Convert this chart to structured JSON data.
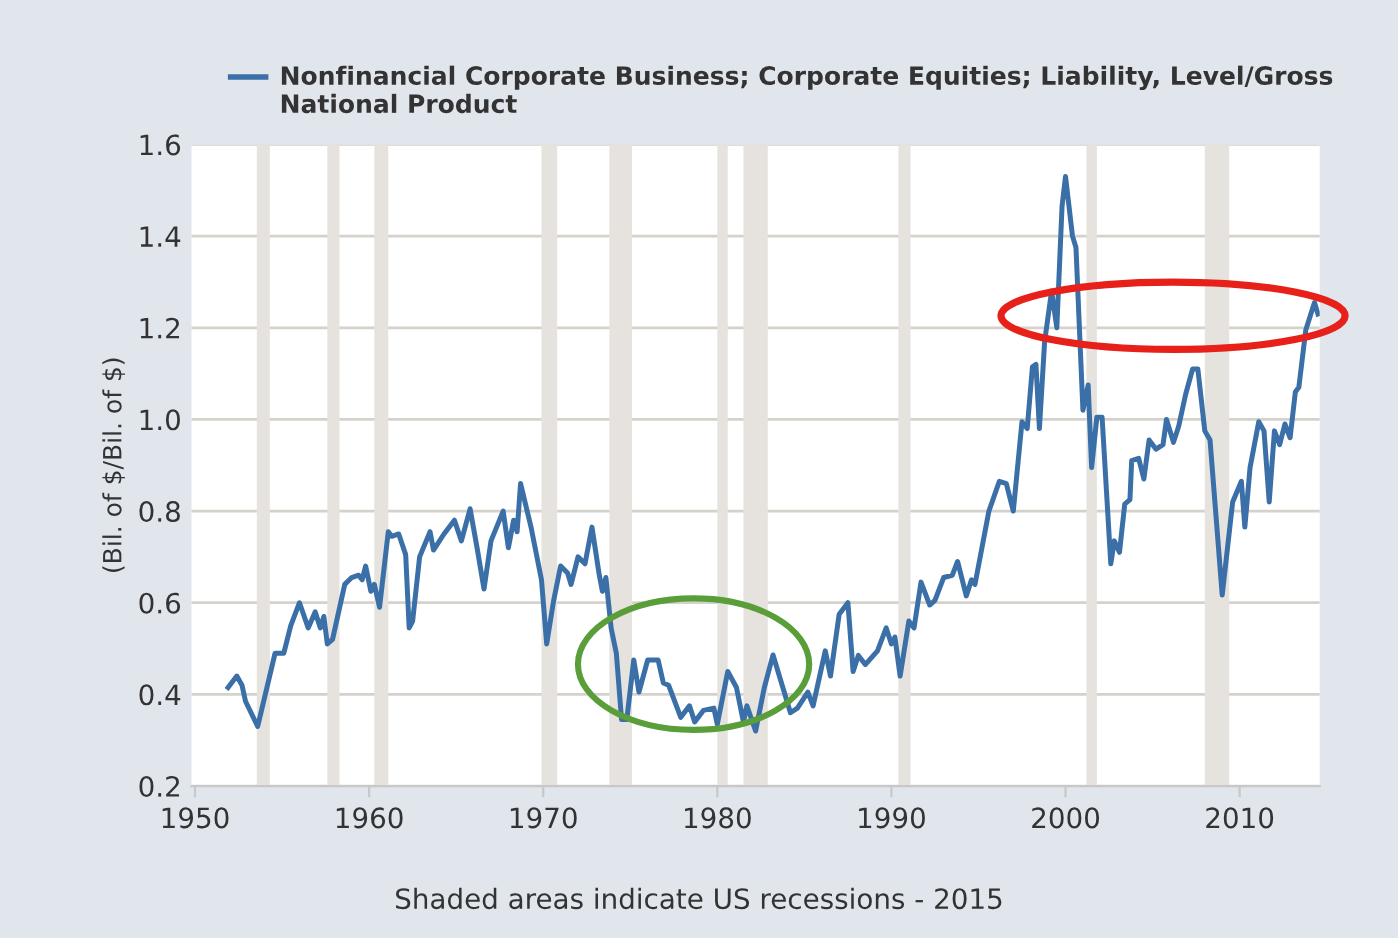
{
  "chart_data": {
    "type": "line",
    "ylabel": "(Bil. of $/Bil. of $)",
    "annotations": [
      "Shaded areas indicate US recessions - 2015"
    ],
    "xlim": [
      1949.8,
      2014.6
    ],
    "xticks": [
      1950,
      1960,
      1970,
      1980,
      1990,
      2000,
      2010
    ],
    "ylim": [
      0.2,
      1.6
    ],
    "yticks": [
      0.2,
      0.4,
      0.6,
      0.8,
      {
        "value": 1.0,
        "label": "1.0"
      },
      1.2,
      1.4,
      1.6
    ],
    "grid": "y",
    "legend": "top",
    "marker": "none",
    "line_style": "solid",
    "bands": [
      {
        "axis": "x",
        "from": 1953.55,
        "to": 1954.3,
        "color": "#e6e3df"
      },
      {
        "axis": "x",
        "from": 1957.6,
        "to": 1958.3,
        "color": "#e6e3df"
      },
      {
        "axis": "x",
        "from": 1960.3,
        "to": 1961.1,
        "color": "#e6e3df"
      },
      {
        "axis": "x",
        "from": 1969.9,
        "to": 1970.8,
        "color": "#e6e3df"
      },
      {
        "axis": "x",
        "from": 1973.8,
        "to": 1975.1,
        "color": "#e6e3df"
      },
      {
        "axis": "x",
        "from": 1980.0,
        "to": 1980.6,
        "color": "#e6e3df"
      },
      {
        "axis": "x",
        "from": 1981.5,
        "to": 1982.9,
        "color": "#e6e3df"
      },
      {
        "axis": "x",
        "from": 1990.4,
        "to": 1991.1,
        "color": "#e6e3df"
      },
      {
        "axis": "x",
        "from": 2001.2,
        "to": 2001.8,
        "color": "#e6e3df"
      },
      {
        "axis": "x",
        "from": 2008.0,
        "to": 2009.4,
        "color": "#e6e3df"
      }
    ],
    "series": [
      {
        "name": "Nonfinancial Corporate Business; Corporate Equities; Liability, Level/Gross National Product",
        "color": "#3a6fa8",
        "x": [
          1951.9,
          1952.4,
          1952.7,
          1952.9,
          1953.6,
          1954.6,
          1955.1,
          1955.5,
          1956.0,
          1956.5,
          1956.9,
          1957.2,
          1957.4,
          1957.6,
          1957.9,
          1958.6,
          1959.0,
          1959.4,
          1959.6,
          1959.8,
          1960.1,
          1960.3,
          1960.6,
          1961.1,
          1961.3,
          1961.7,
          1962.1,
          1962.3,
          1962.5,
          1962.9,
          1963.5,
          1963.7,
          1964.3,
          1964.9,
          1965.3,
          1965.8,
          1966.2,
          1966.6,
          1967.0,
          1967.7,
          1968.0,
          1968.3,
          1968.5,
          1968.7,
          1969.3,
          1969.9,
          1970.2,
          1970.6,
          1971.0,
          1971.4,
          1971.6,
          1972.0,
          1972.4,
          1972.8,
          1973.2,
          1973.4,
          1973.6,
          1973.9,
          1974.2,
          1974.5,
          1974.8,
          1975.2,
          1975.5,
          1976.0,
          1976.6,
          1976.9,
          1977.2,
          1977.9,
          1978.4,
          1978.7,
          1979.2,
          1979.8,
          1980.0,
          1980.6,
          1981.1,
          1981.5,
          1981.7,
          1982.2,
          1982.7,
          1983.2,
          1984.2,
          1984.6,
          1985.2,
          1985.5,
          1986.2,
          1986.5,
          1987.0,
          1987.5,
          1987.8,
          1988.1,
          1988.5,
          1989.2,
          1989.7,
          1990.0,
          1990.2,
          1990.5,
          1991.0,
          1991.3,
          1991.7,
          1992.2,
          1992.5,
          1993.0,
          1993.5,
          1993.8,
          1994.3,
          1994.6,
          1994.8,
          1995.6,
          1996.2,
          1996.6,
          1997.0,
          1997.5,
          1997.8,
          1998.1,
          1998.3,
          1998.5,
          1998.8,
          1999.2,
          1999.5,
          1999.8,
          2000.0,
          2000.4,
          2000.6,
          2001.0,
          2001.3,
          2001.5,
          2001.8,
          2002.1,
          2002.6,
          2002.8,
          2003.1,
          2003.4,
          2003.7,
          2003.8,
          2004.2,
          2004.5,
          2004.8,
          2005.2,
          2005.6,
          2005.8,
          2006.2,
          2006.5,
          2006.9,
          2007.3,
          2007.6,
          2008.0,
          2008.3,
          2009.0,
          2009.6,
          2010.1,
          2010.3,
          2010.6,
          2011.1,
          2011.4,
          2011.7,
          2012.0,
          2012.3,
          2012.6,
          2012.9,
          2013.2,
          2013.4,
          2013.8,
          2014.3,
          2014.5
        ],
        "values": [
          0.415,
          0.44,
          0.42,
          0.385,
          0.33,
          0.49,
          0.49,
          0.55,
          0.6,
          0.545,
          0.58,
          0.545,
          0.57,
          0.51,
          0.52,
          0.64,
          0.655,
          0.66,
          0.65,
          0.68,
          0.625,
          0.64,
          0.59,
          0.755,
          0.745,
          0.75,
          0.705,
          0.545,
          0.56,
          0.7,
          0.755,
          0.715,
          0.75,
          0.78,
          0.735,
          0.805,
          0.72,
          0.63,
          0.735,
          0.8,
          0.72,
          0.78,
          0.755,
          0.86,
          0.765,
          0.65,
          0.51,
          0.605,
          0.68,
          0.665,
          0.64,
          0.7,
          0.685,
          0.765,
          0.665,
          0.625,
          0.655,
          0.545,
          0.49,
          0.345,
          0.345,
          0.475,
          0.405,
          0.475,
          0.475,
          0.425,
          0.42,
          0.35,
          0.375,
          0.34,
          0.365,
          0.37,
          0.335,
          0.45,
          0.415,
          0.34,
          0.375,
          0.32,
          0.415,
          0.486,
          0.36,
          0.37,
          0.405,
          0.375,
          0.495,
          0.44,
          0.575,
          0.6,
          0.45,
          0.485,
          0.465,
          0.495,
          0.545,
          0.51,
          0.525,
          0.44,
          0.56,
          0.545,
          0.645,
          0.595,
          0.605,
          0.655,
          0.66,
          0.69,
          0.615,
          0.65,
          0.64,
          0.8,
          0.865,
          0.86,
          0.8,
          0.995,
          0.98,
          1.115,
          1.12,
          0.98,
          1.17,
          1.28,
          1.2,
          1.465,
          1.53,
          1.4,
          1.375,
          1.02,
          1.075,
          0.895,
          1.005,
          1.005,
          0.685,
          0.735,
          0.71,
          0.815,
          0.825,
          0.91,
          0.915,
          0.87,
          0.955,
          0.935,
          0.945,
          1.0,
          0.95,
          0.985,
          1.055,
          1.11,
          1.11,
          0.975,
          0.955,
          0.617,
          0.82,
          0.865,
          0.765,
          0.895,
          0.995,
          0.975,
          0.82,
          0.975,
          0.945,
          0.99,
          0.96,
          1.06,
          1.07,
          1.195,
          1.255,
          1.23
        ]
      }
    ]
  }
}
